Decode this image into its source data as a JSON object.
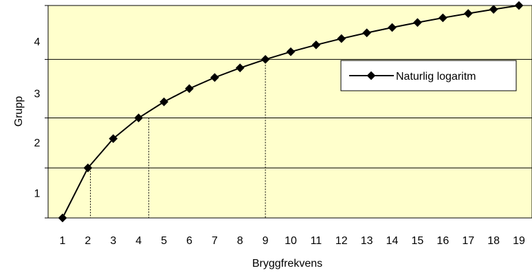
{
  "chart_data": {
    "type": "line",
    "title": "",
    "xlabel": "Bryggfrekvens",
    "ylabel": "Grupp",
    "x": [
      1,
      2,
      3,
      4,
      5,
      6,
      7,
      8,
      9,
      10,
      11,
      12,
      13,
      14,
      15,
      16,
      17,
      18,
      19
    ],
    "series": [
      {
        "name": "Naturlig logaritm",
        "color": "#000000",
        "marker": "diamond",
        "values": [
          0,
          0.693,
          1.099,
          1.386,
          1.609,
          1.792,
          1.946,
          2.079,
          2.197,
          2.303,
          2.398,
          2.485,
          2.565,
          2.639,
          2.708,
          2.773,
          2.833,
          2.89,
          2.944
        ]
      }
    ],
    "x_tick_labels": [
      "1",
      "2",
      "3",
      "4",
      "5",
      "6",
      "7",
      "8",
      "9",
      "10",
      "11",
      "12",
      "13",
      "14",
      "15",
      "16",
      "17",
      "18",
      "19"
    ],
    "y_tick_labels": [
      {
        "label": "1",
        "at": 0.35
      },
      {
        "label": "2",
        "at": 1.05
      },
      {
        "label": "3",
        "at": 1.73
      },
      {
        "label": "4",
        "at": 2.45
      }
    ],
    "gridlines_y": [
      0.693,
      1.386,
      2.197
    ],
    "drop_lines": [
      {
        "x": 2.1,
        "y": 0.693
      },
      {
        "x": 4.4,
        "y": 1.386
      },
      {
        "x": 9.0,
        "y": 2.197
      }
    ],
    "ylim": [
      0,
      2.944
    ],
    "xlim": [
      1,
      19
    ],
    "plot_background": "#ffffcc",
    "legend": {
      "position": "right",
      "entries": [
        "Naturlig logaritm"
      ]
    }
  }
}
